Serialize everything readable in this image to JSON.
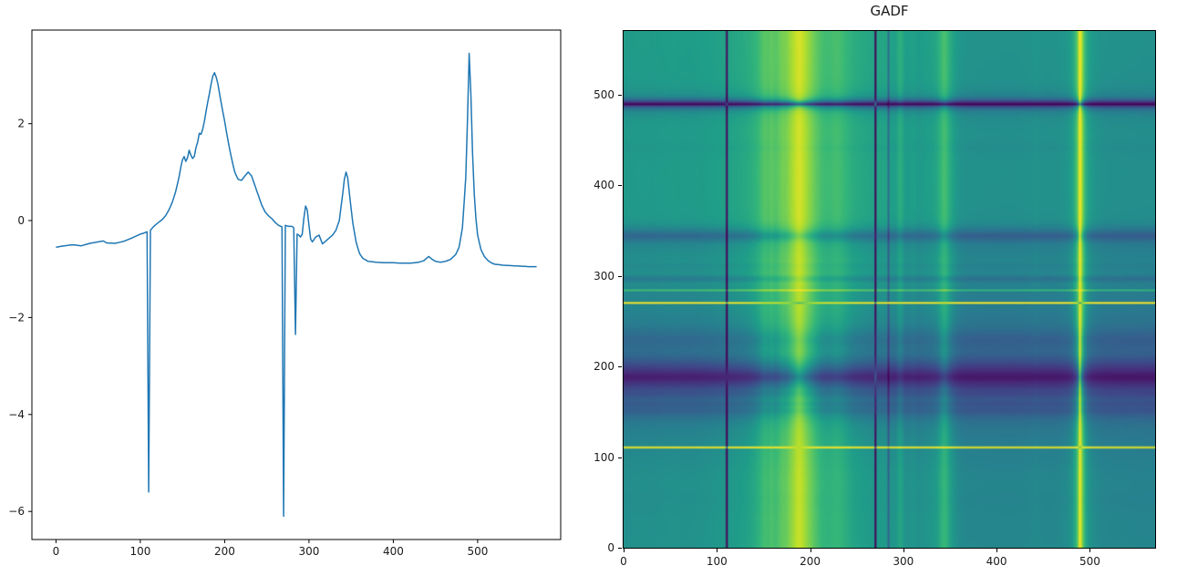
{
  "page": {
    "background": "#ffffff"
  },
  "chart_data": [
    {
      "type": "line",
      "title": "",
      "xlabel": "",
      "ylabel": "",
      "line_color": "#1f77b4",
      "x_ticks": [
        0,
        100,
        200,
        300,
        400,
        500
      ],
      "y_ticks": [
        -6,
        -4,
        -2,
        0,
        2
      ],
      "xlim": [
        -28.5,
        598.5
      ],
      "ylim": [
        -6.58,
        3.93
      ],
      "grid": false,
      "legend": "none",
      "sample_step": 2,
      "keypoints": {
        "x": [
          0,
          10,
          20,
          30,
          40,
          50,
          56,
          60,
          70,
          80,
          90,
          100,
          104,
          108,
          110,
          112,
          116,
          120,
          126,
          130,
          134,
          138,
          142,
          146,
          148,
          150,
          152,
          154,
          156,
          158,
          160,
          162,
          164,
          166,
          168,
          170,
          172,
          174,
          176,
          178,
          180,
          182,
          184,
          186,
          188,
          190,
          192,
          194,
          196,
          200,
          204,
          208,
          212,
          216,
          220,
          224,
          228,
          232,
          236,
          240,
          244,
          248,
          252,
          256,
          260,
          264,
          268,
          270,
          272,
          276,
          280,
          282,
          284,
          286,
          288,
          290,
          292,
          294,
          296,
          298,
          300,
          302,
          304,
          308,
          312,
          316,
          320,
          324,
          328,
          332,
          336,
          340,
          342,
          344,
          346,
          348,
          350,
          352,
          356,
          360,
          364,
          370,
          380,
          390,
          400,
          410,
          420,
          430,
          436,
          440,
          442,
          446,
          450,
          456,
          462,
          468,
          474,
          478,
          482,
          486,
          488,
          490,
          492,
          494,
          496,
          498,
          500,
          504,
          508,
          512,
          516,
          520,
          530,
          540,
          550,
          560,
          570
        ],
        "y": [
          -0.55,
          -0.52,
          -0.5,
          -0.52,
          -0.47,
          -0.44,
          -0.42,
          -0.46,
          -0.47,
          -0.43,
          -0.36,
          -0.28,
          -0.26,
          -0.23,
          -5.6,
          -0.2,
          -0.12,
          -0.06,
          0.02,
          0.1,
          0.22,
          0.38,
          0.6,
          0.9,
          1.1,
          1.25,
          1.32,
          1.22,
          1.3,
          1.45,
          1.35,
          1.28,
          1.32,
          1.5,
          1.62,
          1.8,
          1.78,
          1.88,
          2.05,
          2.25,
          2.45,
          2.62,
          2.82,
          2.98,
          3.05,
          2.96,
          2.82,
          2.62,
          2.42,
          2.05,
          1.65,
          1.3,
          1.0,
          0.85,
          0.83,
          0.92,
          1.0,
          0.92,
          0.72,
          0.52,
          0.32,
          0.18,
          0.1,
          0.04,
          -0.04,
          -0.1,
          -0.13,
          -6.1,
          -0.1,
          -0.12,
          -0.12,
          -0.15,
          -2.35,
          -0.28,
          -0.3,
          -0.34,
          -0.28,
          0.05,
          0.3,
          0.22,
          -0.1,
          -0.38,
          -0.44,
          -0.34,
          -0.3,
          -0.48,
          -0.42,
          -0.36,
          -0.3,
          -0.2,
          0.0,
          0.55,
          0.85,
          1.0,
          0.88,
          0.55,
          0.25,
          -0.05,
          -0.45,
          -0.68,
          -0.78,
          -0.84,
          -0.86,
          -0.87,
          -0.87,
          -0.88,
          -0.88,
          -0.86,
          -0.83,
          -0.77,
          -0.74,
          -0.8,
          -0.84,
          -0.86,
          -0.84,
          -0.8,
          -0.7,
          -0.55,
          -0.15,
          0.9,
          2.1,
          3.45,
          2.6,
          1.4,
          0.55,
          0.05,
          -0.3,
          -0.6,
          -0.74,
          -0.82,
          -0.87,
          -0.9,
          -0.92,
          -0.93,
          -0.94,
          -0.95,
          -0.95
        ]
      }
    },
    {
      "type": "heatmap",
      "title": "GADF",
      "xlabel": "",
      "ylabel": "",
      "x_ticks": [
        0,
        100,
        200,
        300,
        400,
        500
      ],
      "y_ticks": [
        0,
        100,
        200,
        300,
        400,
        500
      ],
      "extent": [
        0,
        570,
        0,
        570
      ],
      "origin": "lower",
      "vmin": -1,
      "vmax": 1,
      "colormap": "viridis",
      "colormap_stops": [
        [
          68,
          1,
          84
        ],
        [
          72,
          40,
          120
        ],
        [
          62,
          74,
          137
        ],
        [
          49,
          104,
          142
        ],
        [
          38,
          130,
          142
        ],
        [
          31,
          158,
          137
        ],
        [
          53,
          183,
          121
        ],
        [
          109,
          205,
          89
        ],
        [
          180,
          222,
          44
        ],
        [
          253,
          231,
          37
        ]
      ],
      "series_ref": 0,
      "transform": "GADF[i][j] = sin(phi_i - phi_j), phi = arccos(series min-max scaled to [-1,1])"
    }
  ]
}
